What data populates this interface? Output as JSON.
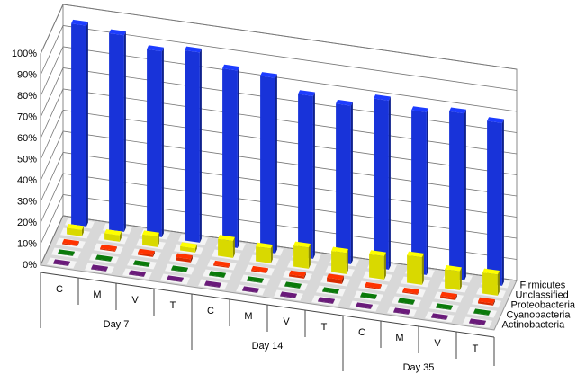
{
  "chart_data": {
    "type": "bar3d",
    "groups": [
      {
        "name": "Day 7",
        "categories": [
          "C",
          "M",
          "V",
          "T"
        ]
      },
      {
        "name": "Day 14",
        "categories": [
          "C",
          "M",
          "V",
          "T"
        ]
      },
      {
        "name": "Day 35",
        "categories": [
          "C",
          "M",
          "V",
          "T"
        ]
      }
    ],
    "series": [
      {
        "name": "Firmicutes",
        "color": "#1c3cff",
        "values": [
          95,
          93,
          88,
          90,
          84,
          83,
          77,
          75,
          80,
          77,
          79,
          77
        ]
      },
      {
        "name": "Unclassified",
        "color": "#ffff00",
        "values": [
          3,
          3,
          5,
          2,
          8,
          7,
          10,
          10,
          11,
          13,
          9,
          10
        ]
      },
      {
        "name": "Proteobacteria",
        "color": "#ff3300",
        "values": [
          0.5,
          0.5,
          1,
          1.5,
          0.5,
          0.5,
          1,
          2,
          0.5,
          0.5,
          1,
          1
        ]
      },
      {
        "name": "Cyanobacteria",
        "color": "#0a7a0a",
        "values": [
          0.3,
          0.3,
          0.3,
          0.3,
          0.3,
          0.3,
          0.3,
          0.3,
          0.3,
          0.3,
          0.3,
          0.3
        ]
      },
      {
        "name": "Actinobacteria",
        "color": "#6a1a7a",
        "values": [
          0.3,
          0.3,
          0.3,
          0.3,
          0.3,
          0.3,
          0.3,
          0.3,
          0.3,
          0.3,
          0.3,
          0.3
        ]
      }
    ],
    "ylim": [
      0,
      100
    ],
    "yticks": [
      {
        "value": 0,
        "label": "0%"
      },
      {
        "value": 10,
        "label": "10%"
      },
      {
        "value": 20,
        "label": "20%"
      },
      {
        "value": 30,
        "label": "30%"
      },
      {
        "value": 40,
        "label": "40%"
      },
      {
        "value": 50,
        "label": "50%"
      },
      {
        "value": 60,
        "label": "60%"
      },
      {
        "value": 70,
        "label": "70%"
      },
      {
        "value": 80,
        "label": "80%"
      },
      {
        "value": 90,
        "label": "90%"
      },
      {
        "value": 100,
        "label": "100%"
      }
    ],
    "grid": true
  }
}
